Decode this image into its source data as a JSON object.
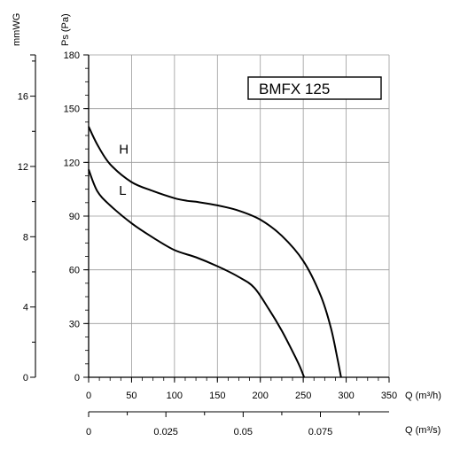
{
  "chart_data": {
    "type": "line",
    "title": "BMFX 125",
    "xlabel": "Q (m³/h)",
    "ylabel": "Ps (Pa)",
    "xlim": [
      0,
      350
    ],
    "ylim": [
      0,
      180
    ],
    "grid": true,
    "x_ticks": [
      "0",
      "50",
      "100",
      "150",
      "200",
      "250",
      "300",
      "350"
    ],
    "y_ticks": [
      "0",
      "30",
      "60",
      "90",
      "120",
      "150",
      "180"
    ],
    "secondary_y": {
      "label": "mmWG",
      "ticks": [
        "0",
        "4",
        "8",
        "12",
        "16"
      ],
      "values": [
        0,
        4,
        8,
        12,
        16
      ],
      "pa_per_unit": 9.81
    },
    "secondary_x": {
      "label": "Q (m³/s)",
      "ticks": [
        "0",
        "0.025",
        "0.05",
        "0.075"
      ],
      "values": [
        0,
        0.025,
        0.05,
        0.075
      ],
      "m3h_per_unit": 3600
    },
    "series": [
      {
        "name": "H",
        "x": [
          0,
          10,
          25,
          50,
          75,
          100,
          115,
          125,
          150,
          175,
          200,
          225,
          250,
          270,
          282,
          290,
          294
        ],
        "y": [
          140,
          130,
          119,
          109,
          104,
          100,
          98.5,
          98,
          96,
          93,
          88,
          79,
          65,
          46,
          28,
          10,
          0
        ]
      },
      {
        "name": "L",
        "x": [
          0,
          10,
          25,
          50,
          75,
          100,
          125,
          150,
          175,
          193,
          210,
          225,
          238,
          246,
          251
        ],
        "y": [
          116,
          104,
          96,
          86,
          78,
          71,
          67,
          62,
          56,
          50,
          38,
          26,
          14,
          6,
          0
        ]
      }
    ]
  }
}
